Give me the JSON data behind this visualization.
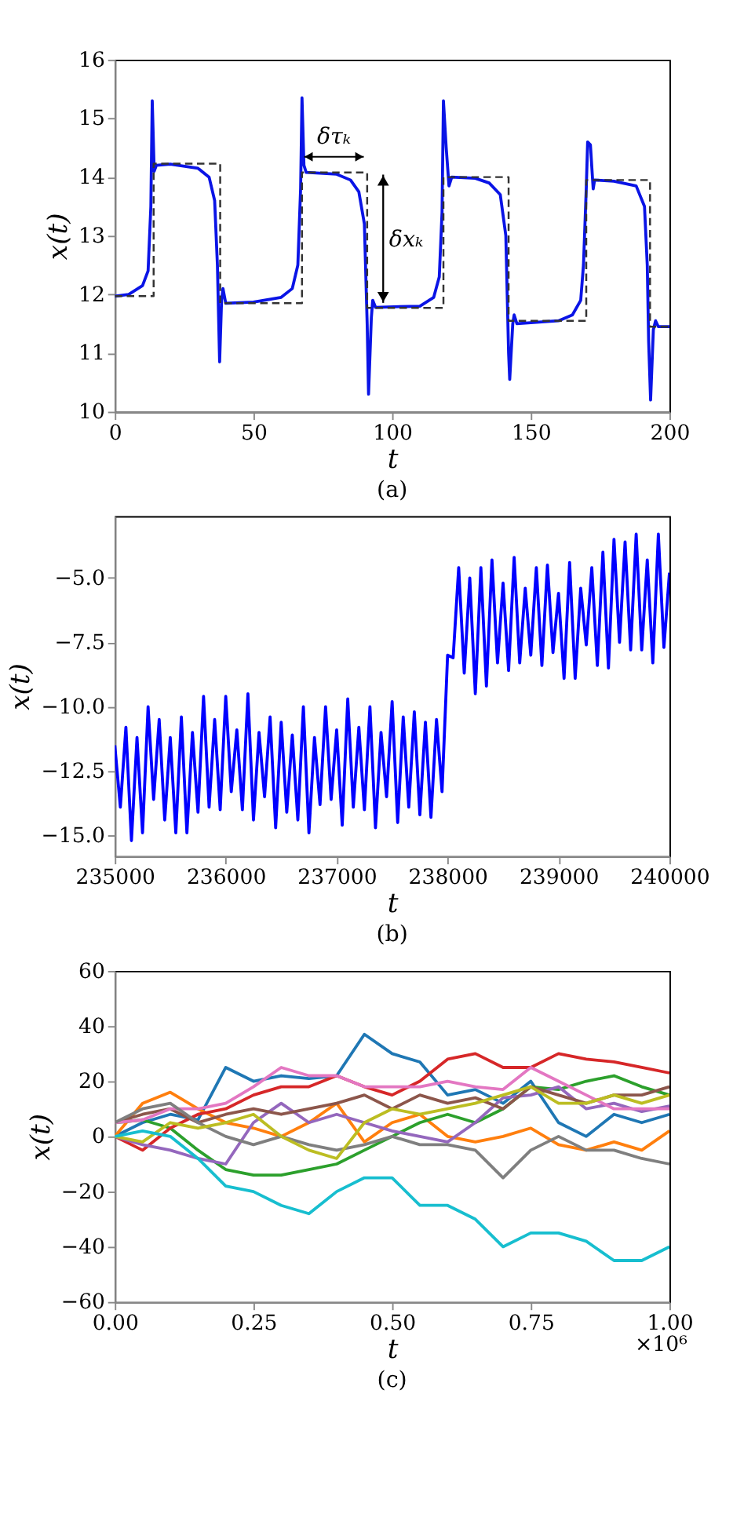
{
  "chart_data": [
    {
      "type": "line",
      "xlabel": "t",
      "ylabel": "x(t)",
      "xlim": [
        0,
        200
      ],
      "ylim": [
        10,
        16
      ],
      "xticks": [
        0,
        50,
        100,
        150,
        200
      ],
      "yticks": [
        10,
        11,
        12,
        13,
        14,
        15,
        16
      ],
      "grid": false,
      "annotations": [
        "δτₖ",
        "δxₖ",
        "(a)"
      ],
      "series": [
        {
          "type": "line",
          "color": "#0a14e6",
          "line_style": "solid",
          "x": [
            0,
            5,
            10,
            12,
            13,
            13.5,
            14.2,
            15,
            20,
            30,
            34,
            36,
            37,
            37.8,
            38.5,
            39,
            40,
            50,
            60,
            64,
            66,
            67,
            67.5,
            68.2,
            69,
            80,
            85,
            88,
            90,
            91,
            91.5,
            92.5,
            93,
            94,
            110,
            115,
            117,
            118,
            118.5,
            119.5,
            120.5,
            121.5,
            130,
            135,
            139,
            141,
            142,
            142.4,
            143.5,
            144,
            145,
            160,
            165,
            168,
            169,
            170,
            170.5,
            171.5,
            172.5,
            173,
            180,
            188,
            191,
            192,
            192.5,
            193.2,
            194.2,
            195,
            196,
            200
          ],
          "values": [
            11.97,
            12.0,
            12.15,
            12.4,
            13.5,
            15.3,
            14.1,
            14.2,
            14.22,
            14.15,
            14.0,
            13.6,
            12.5,
            10.85,
            11.9,
            12.1,
            11.85,
            11.87,
            11.95,
            12.1,
            12.5,
            13.8,
            15.35,
            14.2,
            14.08,
            14.05,
            13.95,
            13.75,
            13.2,
            11.5,
            10.3,
            11.6,
            11.9,
            11.78,
            11.8,
            11.95,
            12.3,
            13.4,
            15.3,
            14.5,
            13.85,
            14.0,
            13.98,
            13.9,
            13.7,
            13.0,
            11.0,
            10.55,
            11.5,
            11.65,
            11.5,
            11.55,
            11.65,
            11.9,
            12.5,
            13.8,
            14.6,
            14.55,
            13.8,
            13.95,
            13.93,
            13.85,
            13.5,
            12.5,
            11.2,
            10.2,
            11.4,
            11.55,
            11.45,
            11.45
          ]
        },
        {
          "type": "step",
          "color": "#333333",
          "line_style": "dashed",
          "x": [
            0,
            14,
            38,
            67.5,
            91,
            118.5,
            142,
            170,
            193,
            200
          ],
          "values": [
            11.97,
            14.23,
            11.85,
            14.08,
            11.77,
            14.0,
            11.55,
            13.95,
            11.45,
            11.45
          ]
        }
      ]
    },
    {
      "type": "line",
      "xlabel": "t",
      "ylabel": "x(t)",
      "xlim": [
        235000,
        240000
      ],
      "ylim": [
        -15.8,
        -2.6
      ],
      "xticks": [
        235000,
        236000,
        237000,
        238000,
        239000,
        240000
      ],
      "yticks": [
        {
          "value": -15,
          "label": "−15.0"
        },
        {
          "value": -12.5,
          "label": "−12.5"
        },
        {
          "value": -10,
          "label": "−10.0"
        },
        {
          "value": -7.5,
          "label": "−7.5"
        },
        {
          "value": -5,
          "label": "−5.0"
        }
      ],
      "grid": false,
      "annotations": [
        "(b)"
      ],
      "series": [
        {
          "type": "line",
          "color": "#0000ff",
          "line_style": "solid",
          "x": [
            235000,
            235050,
            235100,
            235150,
            235200,
            235250,
            235300,
            235350,
            235400,
            235450,
            235500,
            235550,
            235600,
            235650,
            235700,
            235750,
            235800,
            235850,
            235900,
            235950,
            236000,
            236050,
            236100,
            236150,
            236200,
            236250,
            236300,
            236350,
            236400,
            236450,
            236500,
            236550,
            236600,
            236650,
            236700,
            236750,
            236800,
            236850,
            236900,
            236950,
            237000,
            237050,
            237100,
            237150,
            237200,
            237250,
            237300,
            237350,
            237400,
            237450,
            237500,
            237550,
            237600,
            237650,
            237700,
            237750,
            237800,
            237850,
            237900,
            237950,
            238000,
            238050,
            238100,
            238150,
            238200,
            238250,
            238300,
            238350,
            238400,
            238450,
            238500,
            238550,
            238600,
            238650,
            238700,
            238750,
            238800,
            238850,
            238900,
            238950,
            239000,
            239050,
            239100,
            239150,
            239200,
            239250,
            239300,
            239350,
            239400,
            239450,
            239500,
            239550,
            239600,
            239650,
            239700,
            239750,
            239800,
            239850,
            239900,
            239950,
            240000
          ],
          "values": [
            -11.5,
            -13.9,
            -10.8,
            -15.2,
            -11.2,
            -14.9,
            -10.0,
            -13.6,
            -10.5,
            -14.4,
            -11.2,
            -14.9,
            -10.4,
            -14.9,
            -11.0,
            -14.1,
            -9.6,
            -13.9,
            -10.5,
            -14.0,
            -9.6,
            -13.3,
            -10.9,
            -14.0,
            -9.5,
            -14.4,
            -11.0,
            -13.5,
            -10.4,
            -14.7,
            -10.6,
            -14.1,
            -11.1,
            -14.4,
            -10.0,
            -14.9,
            -11.2,
            -13.8,
            -10.0,
            -13.6,
            -10.9,
            -14.6,
            -9.7,
            -13.9,
            -10.8,
            -14.0,
            -10.0,
            -14.7,
            -11.0,
            -13.5,
            -9.8,
            -14.5,
            -10.4,
            -13.9,
            -10.2,
            -14.2,
            -10.6,
            -14.3,
            -10.5,
            -13.3,
            -8.0,
            -8.1,
            -4.6,
            -8.7,
            -5.0,
            -9.5,
            -4.6,
            -9.2,
            -4.3,
            -8.3,
            -5.2,
            -8.6,
            -4.2,
            -8.3,
            -5.4,
            -8.0,
            -4.6,
            -8.4,
            -4.5,
            -7.9,
            -5.6,
            -8.9,
            -4.4,
            -8.9,
            -5.4,
            -7.6,
            -4.6,
            -8.4,
            -4.0,
            -8.5,
            -3.5,
            -7.5,
            -3.6,
            -7.8,
            -3.3,
            -7.8,
            -4.3,
            -8.3,
            -3.3,
            -7.7,
            -4.8
          ]
        }
      ]
    },
    {
      "type": "line",
      "xlabel": "t",
      "ylabel": "x(t)",
      "xlim": [
        0,
        1
      ],
      "ylim": [
        -60,
        60
      ],
      "xticks": [
        {
          "value": 0,
          "label": "0.00"
        },
        {
          "value": 0.25,
          "label": "0.25"
        },
        {
          "value": 0.5,
          "label": "0.50"
        },
        {
          "value": 0.75,
          "label": "0.75"
        },
        {
          "value": 1,
          "label": "1.00"
        }
      ],
      "yticks": [
        {
          "value": -60,
          "label": "−60"
        },
        {
          "value": -40,
          "label": "−40"
        },
        {
          "value": -20,
          "label": "−20"
        },
        0,
        20,
        40,
        60
      ],
      "grid": false,
      "annotations": [
        "×10⁶",
        "(c)"
      ],
      "x": [
        0,
        0.05,
        0.1,
        0.15,
        0.2,
        0.25,
        0.3,
        0.35,
        0.4,
        0.45,
        0.5,
        0.55,
        0.6,
        0.65,
        0.7,
        0.75,
        0.8,
        0.85,
        0.9,
        0.95,
        1.0
      ],
      "series": [
        {
          "color": "#1f77b4",
          "values": [
            0,
            5,
            8,
            6,
            25,
            20,
            22,
            21,
            22,
            37,
            30,
            27,
            15,
            17,
            12,
            20,
            5,
            0,
            8,
            5,
            8
          ]
        },
        {
          "color": "#ff7f0e",
          "values": [
            0,
            12,
            16,
            10,
            5,
            3,
            0,
            5,
            12,
            -2,
            5,
            8,
            0,
            -2,
            0,
            3,
            -3,
            -5,
            -2,
            -5,
            2
          ]
        },
        {
          "color": "#2ca02c",
          "values": [
            5,
            6,
            3,
            -5,
            -12,
            -14,
            -14,
            -12,
            -10,
            -5,
            0,
            5,
            8,
            5,
            10,
            18,
            17,
            20,
            22,
            18,
            15
          ]
        },
        {
          "color": "#d62728",
          "values": [
            0,
            -5,
            3,
            8,
            10,
            15,
            18,
            18,
            22,
            18,
            15,
            20,
            28,
            30,
            25,
            25,
            30,
            28,
            27,
            25,
            23
          ]
        },
        {
          "color": "#9467bd",
          "values": [
            0,
            -3,
            -5,
            -8,
            -10,
            5,
            12,
            5,
            8,
            5,
            2,
            0,
            -2,
            5,
            14,
            15,
            18,
            10,
            12,
            9,
            11
          ]
        },
        {
          "color": "#8c564b",
          "values": [
            5,
            8,
            10,
            5,
            8,
            10,
            8,
            10,
            12,
            15,
            10,
            15,
            12,
            14,
            10,
            18,
            15,
            12,
            15,
            15,
            18
          ]
        },
        {
          "color": "#e377c2",
          "values": [
            5,
            6,
            10,
            10,
            12,
            18,
            25,
            22,
            22,
            18,
            18,
            18,
            20,
            18,
            17,
            25,
            20,
            15,
            10,
            10,
            10
          ]
        },
        {
          "color": "#7f7f7f",
          "values": [
            5,
            10,
            12,
            5,
            0,
            -3,
            0,
            -3,
            -5,
            -3,
            0,
            -3,
            -3,
            -5,
            -15,
            -5,
            0,
            -5,
            -5,
            -8,
            -10
          ]
        },
        {
          "color": "#bcbd22",
          "values": [
            0,
            -2,
            5,
            3,
            5,
            8,
            0,
            -5,
            -8,
            5,
            10,
            8,
            10,
            12,
            15,
            18,
            12,
            12,
            15,
            12,
            15
          ]
        },
        {
          "color": "#17becf",
          "values": [
            0,
            2,
            0,
            -8,
            -18,
            -20,
            -25,
            -28,
            -20,
            -15,
            -15,
            -25,
            -25,
            -30,
            -40,
            -35,
            -35,
            -38,
            -45,
            -45,
            -40
          ]
        }
      ]
    }
  ]
}
